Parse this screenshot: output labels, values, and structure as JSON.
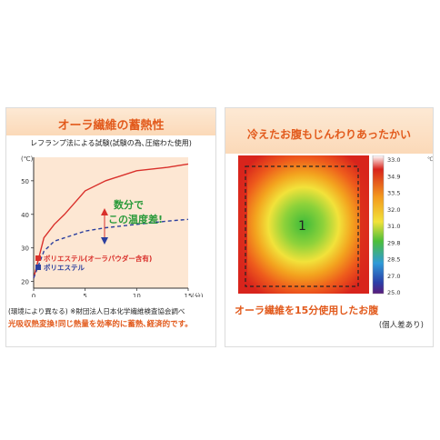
{
  "left": {
    "title": "オーラ繊維の蓄熱性",
    "subtitle": "レフランプ法による試験(試験の為､圧縮わた使用)",
    "note": "(環境により異なる) ※財団法人日本化学繊維検査協会調べ",
    "tagline": "光吸収熱変換!同じ熱量を効率的に蓄熱､経済的です。"
  },
  "right": {
    "title": "冷えたお腹もじんわりあったかい",
    "caption": "オーラ繊維を15分使用したお腹",
    "caption_note": "(個人差あり)",
    "region_label": "1",
    "scale_labels": [
      "33.0",
      "34.9",
      "33.5",
      "32.0",
      "31.0",
      "29.8",
      "28.5",
      "27.0",
      "25.0"
    ],
    "unit": "℃"
  },
  "chart_data": {
    "type": "line",
    "ylabel": "(℃)",
    "xlabel": "(分)",
    "x_ticks": [
      "0",
      "5",
      "10",
      "15"
    ],
    "y_ticks": [
      "20",
      "30",
      "40",
      "50"
    ],
    "xlim": [
      0,
      15
    ],
    "ylim": [
      18,
      57
    ],
    "annotation": [
      "数分で",
      "この温度差!"
    ],
    "series": [
      {
        "name": "ポリエステル(オーラパウダー含有)",
        "color": "#d9302b",
        "points": [
          [
            0,
            21
          ],
          [
            1,
            33
          ],
          [
            2,
            37
          ],
          [
            3,
            40
          ],
          [
            5,
            47
          ],
          [
            7,
            50
          ],
          [
            10,
            53
          ],
          [
            13,
            54
          ],
          [
            15,
            55
          ]
        ]
      },
      {
        "name": "ポリエステル",
        "color": "#2b3f9e",
        "points": [
          [
            0,
            21
          ],
          [
            1,
            29
          ],
          [
            2,
            32
          ],
          [
            3,
            33
          ],
          [
            5,
            35
          ],
          [
            7,
            36
          ],
          [
            10,
            37
          ],
          [
            13,
            38
          ],
          [
            15,
            38.5
          ]
        ]
      }
    ]
  }
}
